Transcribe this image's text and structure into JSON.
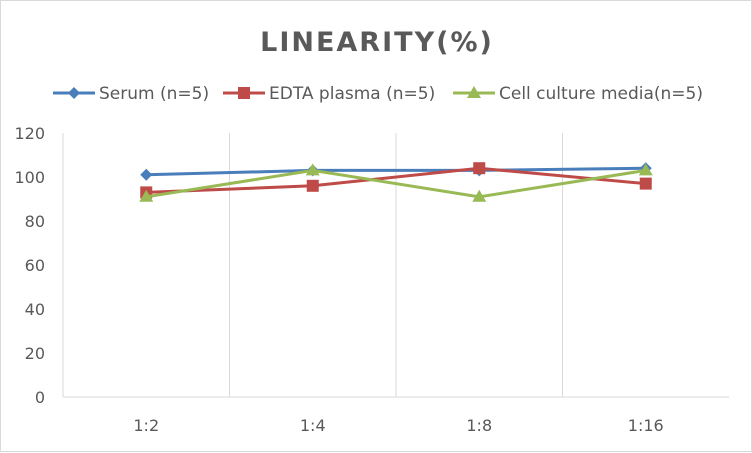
{
  "chart_data": {
    "type": "line",
    "title": "LINEARITY(%)",
    "categories": [
      "1:2",
      "1:4",
      "1:8",
      "1:16"
    ],
    "series": [
      {
        "name": "Serum (n=5)",
        "values": [
          101,
          103,
          103,
          104
        ],
        "color": "#4a7ebb",
        "marker": "diamond"
      },
      {
        "name": "EDTA plasma (n=5)",
        "values": [
          93,
          96,
          104,
          97
        ],
        "color": "#be4b48",
        "marker": "square"
      },
      {
        "name": "Cell culture media(n=5)",
        "values": [
          91,
          103,
          91,
          103
        ],
        "color": "#98b954",
        "marker": "triangle"
      }
    ],
    "ylim": [
      0,
      120
    ],
    "yticks": [
      0,
      20,
      40,
      60,
      80,
      100,
      120
    ],
    "grid": "vertical",
    "legend": "top"
  }
}
